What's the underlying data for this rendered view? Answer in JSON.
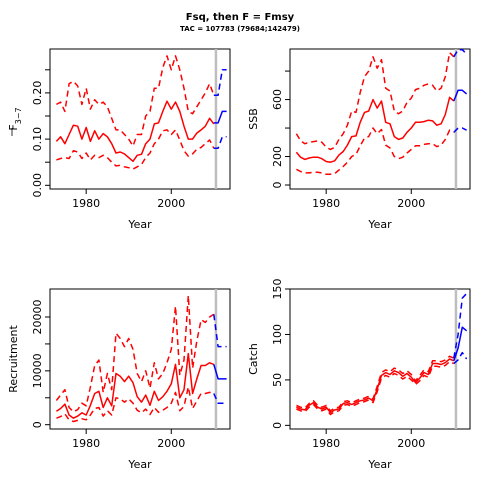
{
  "figure": {
    "title": "Fsq, then F = Fmsy",
    "subtitle": "TAC = 107783 (79684;142479)"
  },
  "colors": {
    "historical": "#ff0000",
    "projection": "#0000ff",
    "divider": "#bebebe"
  },
  "chart_data": [
    {
      "type": "line",
      "id": "fbar",
      "xlabel": "Year",
      "ylabel_main": "F",
      "ylabel_sub": "3−7",
      "xlim": [
        1971.5,
        2013.8
      ],
      "ylim": [
        -0.008,
        0.295
      ],
      "xticks": [
        1980,
        2000
      ],
      "yticks": [
        0.0,
        0.1,
        0.2
      ],
      "yticklabels": [
        "0.00",
        "0.10",
        "0.20"
      ],
      "yminor": [
        0.05,
        0.15,
        0.25
      ],
      "divider_x": 2010.5,
      "years": [
        1973,
        1974,
        1975,
        1976,
        1977,
        1978,
        1979,
        1980,
        1981,
        1982,
        1983,
        1984,
        1985,
        1986,
        1987,
        1988,
        1989,
        1990,
        1991,
        1992,
        1993,
        1994,
        1995,
        1996,
        1997,
        1998,
        1999,
        2000,
        2001,
        2002,
        2003,
        2004,
        2005,
        2006,
        2007,
        2008,
        2009,
        2010
      ],
      "series": [
        {
          "role": "median",
          "values": [
            0.095,
            0.105,
            0.09,
            0.11,
            0.13,
            0.128,
            0.1,
            0.125,
            0.095,
            0.118,
            0.1,
            0.112,
            0.105,
            0.09,
            0.07,
            0.072,
            0.068,
            0.06,
            0.052,
            0.065,
            0.067,
            0.09,
            0.1,
            0.133,
            0.135,
            0.16,
            0.182,
            0.165,
            0.18,
            0.16,
            0.128,
            0.1,
            0.1,
            0.113,
            0.12,
            0.128,
            0.145,
            0.133
          ]
        },
        {
          "role": "lower",
          "values": [
            0.055,
            0.058,
            0.06,
            0.058,
            0.075,
            0.072,
            0.058,
            0.07,
            0.055,
            0.065,
            0.06,
            0.065,
            0.06,
            0.05,
            0.042,
            0.043,
            0.04,
            0.038,
            0.035,
            0.04,
            0.045,
            0.06,
            0.07,
            0.09,
            0.1,
            0.118,
            0.12,
            0.11,
            0.12,
            0.098,
            0.075,
            0.063,
            0.068,
            0.078,
            0.082,
            0.09,
            0.098,
            0.08
          ]
        },
        {
          "role": "upper",
          "values": [
            0.175,
            0.18,
            0.16,
            0.22,
            0.225,
            0.215,
            0.175,
            0.21,
            0.165,
            0.185,
            0.175,
            0.18,
            0.17,
            0.145,
            0.12,
            0.12,
            0.11,
            0.1,
            0.085,
            0.11,
            0.11,
            0.15,
            0.16,
            0.21,
            0.21,
            0.255,
            0.28,
            0.25,
            0.28,
            0.25,
            0.21,
            0.16,
            0.155,
            0.17,
            0.185,
            0.2,
            0.22,
            0.195
          ]
        }
      ],
      "projection_years": [
        2010,
        2011,
        2012,
        2013
      ],
      "projection": [
        {
          "role": "median",
          "values": [
            0.135,
            0.135,
            0.16,
            0.16
          ]
        },
        {
          "role": "lower",
          "values": [
            0.08,
            0.08,
            0.105,
            0.105
          ]
        },
        {
          "role": "upper",
          "values": [
            0.195,
            0.195,
            0.25,
            0.25
          ]
        }
      ]
    },
    {
      "type": "line",
      "id": "ssb",
      "xlabel": "Year",
      "ylabel_main": "SSB",
      "ylabel_sub": "",
      "xlim": [
        1971.5,
        2013.8
      ],
      "ylim": [
        -28,
        955
      ],
      "xticks": [
        1980,
        2000
      ],
      "yticks": [
        0,
        200,
        600
      ],
      "yticklabels": [
        "0",
        "200",
        "600"
      ],
      "yminor": [
        400,
        800
      ],
      "divider_x": 2010.5,
      "years": [
        1973,
        1974,
        1975,
        1976,
        1977,
        1978,
        1979,
        1980,
        1981,
        1982,
        1983,
        1984,
        1985,
        1986,
        1987,
        1988,
        1989,
        1990,
        1991,
        1992,
        1993,
        1994,
        1995,
        1996,
        1997,
        1998,
        1999,
        2000,
        2001,
        2002,
        2003,
        2004,
        2005,
        2006,
        2007,
        2008,
        2009,
        2010
      ],
      "series": [
        {
          "role": "median",
          "values": [
            230,
            195,
            180,
            190,
            195,
            195,
            185,
            165,
            160,
            170,
            210,
            235,
            280,
            340,
            345,
            440,
            510,
            520,
            600,
            540,
            590,
            440,
            430,
            340,
            320,
            330,
            370,
            400,
            440,
            440,
            445,
            455,
            450,
            420,
            430,
            495,
            615,
            590
          ]
        },
        {
          "role": "lower",
          "values": [
            110,
            95,
            85,
            85,
            90,
            90,
            85,
            75,
            75,
            80,
            105,
            130,
            160,
            200,
            215,
            275,
            330,
            340,
            400,
            360,
            390,
            280,
            260,
            200,
            185,
            195,
            225,
            250,
            275,
            275,
            285,
            290,
            290,
            270,
            280,
            320,
            385,
            370
          ]
        },
        {
          "role": "upper",
          "values": [
            360,
            310,
            290,
            300,
            305,
            310,
            300,
            265,
            250,
            265,
            320,
            360,
            420,
            520,
            510,
            650,
            760,
            800,
            900,
            820,
            880,
            680,
            660,
            520,
            500,
            520,
            580,
            610,
            670,
            680,
            700,
            710,
            700,
            660,
            680,
            760,
            930,
            900
          ]
        }
      ],
      "projection_years": [
        2010,
        2011,
        2012,
        2013
      ],
      "projection": [
        {
          "role": "median",
          "values": [
            590,
            665,
            665,
            640
          ]
        },
        {
          "role": "lower",
          "values": [
            370,
            400,
            400,
            385
          ]
        },
        {
          "role": "upper",
          "values": [
            900,
            950,
            950,
            920
          ]
        }
      ]
    },
    {
      "type": "line",
      "id": "recruitment",
      "xlabel": "Year",
      "ylabel_main": "Recruitment",
      "ylabel_sub": "",
      "xlim": [
        1971.5,
        2013.8
      ],
      "ylim": [
        -800,
        25200
      ],
      "xticks": [
        1980,
        2000
      ],
      "yticks": [
        0,
        10000,
        20000
      ],
      "yticklabels": [
        "0",
        "10000",
        "20000"
      ],
      "yminor": [
        5000,
        15000
      ],
      "divider_x": 2010.5,
      "years": [
        1973,
        1974,
        1975,
        1976,
        1977,
        1978,
        1979,
        1980,
        1981,
        1982,
        1983,
        1984,
        1985,
        1986,
        1987,
        1988,
        1989,
        1990,
        1991,
        1992,
        1993,
        1994,
        1995,
        1996,
        1997,
        1998,
        1999,
        2000,
        2001,
        2002,
        2003,
        2004,
        2005,
        2006,
        2007,
        2008,
        2009,
        2010
      ],
      "series": [
        {
          "role": "median",
          "values": [
            2500,
            3000,
            3800,
            1800,
            1200,
            1600,
            2200,
            1800,
            3600,
            5800,
            6200,
            3200,
            5000,
            3500,
            9500,
            9000,
            8000,
            9000,
            7800,
            5200,
            4200,
            5500,
            3600,
            6200,
            4500,
            5200,
            6200,
            7600,
            11200,
            5000,
            6500,
            13200,
            5800,
            8500,
            11000,
            11000,
            11500,
            11200
          ]
        },
        {
          "role": "lower",
          "values": [
            1200,
            1500,
            2000,
            900,
            600,
            800,
            1100,
            900,
            1800,
            3000,
            3200,
            1600,
            2600,
            1800,
            5000,
            4800,
            4200,
            4800,
            4000,
            2700,
            2200,
            2900,
            1900,
            3200,
            2300,
            2700,
            3200,
            4000,
            6000,
            2600,
            3400,
            7000,
            3000,
            4400,
            5800,
            5800,
            6000,
            5800
          ]
        },
        {
          "role": "upper",
          "values": [
            4500,
            5500,
            6500,
            3200,
            2400,
            2800,
            4000,
            3500,
            7000,
            11000,
            12000,
            6000,
            9500,
            6500,
            17000,
            16000,
            14500,
            16000,
            14000,
            9500,
            8000,
            10000,
            6800,
            11500,
            8500,
            9500,
            11500,
            14000,
            22000,
            9200,
            12000,
            24000,
            10500,
            15500,
            19500,
            19000,
            20000,
            20500
          ]
        }
      ],
      "projection_years": [
        2010,
        2011,
        2012,
        2013
      ],
      "projection": [
        {
          "role": "median",
          "values": [
            11200,
            8500,
            8500,
            8500
          ]
        },
        {
          "role": "lower",
          "values": [
            5800,
            4000,
            4000,
            4000
          ]
        },
        {
          "role": "upper",
          "values": [
            20500,
            14500,
            14500,
            14500
          ]
        }
      ]
    },
    {
      "type": "line",
      "id": "catch",
      "xlabel": "Year",
      "ylabel_main": "Catch",
      "ylabel_sub": "",
      "xlim": [
        1971.5,
        2013.8
      ],
      "ylim": [
        -4,
        150
      ],
      "xticks": [
        1980,
        2000
      ],
      "yticks": [
        0,
        50,
        100,
        150
      ],
      "yticklabels": [
        "0",
        "50",
        "100",
        "150"
      ],
      "yminor": [],
      "divider_x": 2010.5,
      "years": [
        1973,
        1974,
        1975,
        1976,
        1977,
        1978,
        1979,
        1980,
        1981,
        1982,
        1983,
        1984,
        1985,
        1986,
        1987,
        1988,
        1989,
        1990,
        1991,
        1992,
        1993,
        1994,
        1995,
        1996,
        1997,
        1998,
        1999,
        2000,
        2001,
        2002,
        2003,
        2004,
        2005,
        2006,
        2007,
        2008,
        2009,
        2010
      ],
      "series": [
        {
          "role": "median",
          "values": [
            20,
            18,
            17,
            22,
            25,
            20,
            18,
            20,
            14,
            17,
            18,
            24,
            25,
            23,
            25,
            27,
            28,
            30,
            27,
            40,
            55,
            58,
            56,
            60,
            58,
            54,
            57,
            53,
            47,
            52,
            58,
            56,
            68,
            68,
            67,
            69,
            73,
            71
          ]
        },
        {
          "role": "lower",
          "values": [
            18,
            16,
            15,
            20,
            23,
            18,
            16,
            18,
            12,
            15,
            16,
            22,
            23,
            21,
            23,
            25,
            26,
            28,
            25,
            37,
            52,
            55,
            53,
            57,
            55,
            51,
            54,
            50,
            45,
            49,
            55,
            53,
            65,
            65,
            64,
            66,
            70,
            68
          ]
        },
        {
          "role": "upper",
          "values": [
            22,
            20,
            19,
            24,
            27,
            22,
            20,
            22,
            16,
            19,
            20,
            26,
            27,
            25,
            27,
            29,
            30,
            32,
            29,
            43,
            58,
            61,
            59,
            63,
            61,
            57,
            60,
            56,
            49,
            55,
            61,
            59,
            71,
            71,
            70,
            72,
            76,
            74
          ]
        }
      ],
      "projection_years": [
        2010,
        2011,
        2012,
        2013
      ],
      "projection": [
        {
          "role": "median",
          "values": [
            71,
            85,
            108,
            104
          ]
        },
        {
          "role": "lower",
          "values": [
            68,
            72,
            80,
            73
          ]
        },
        {
          "role": "upper",
          "values": [
            74,
            100,
            140,
            145
          ]
        }
      ]
    }
  ]
}
